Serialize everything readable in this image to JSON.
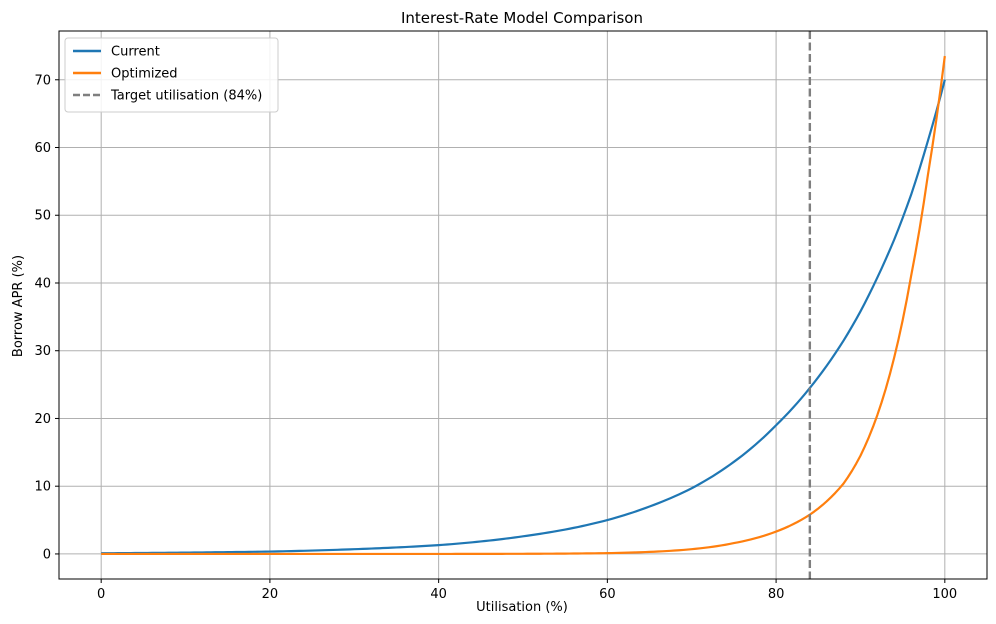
{
  "chart_data": {
    "type": "line",
    "title": "Interest-Rate Model Comparison",
    "xlabel": "Utilisation (%)",
    "ylabel": "Borrow APR (%)",
    "xlim": [
      -5,
      105
    ],
    "ylim": [
      -3.7,
      77.2
    ],
    "xticks": [
      0,
      20,
      40,
      60,
      80,
      100
    ],
    "yticks": [
      0,
      10,
      20,
      30,
      40,
      50,
      60,
      70
    ],
    "grid": true,
    "legend_position": "top-left",
    "x": [
      0,
      10,
      20,
      30,
      40,
      50,
      55,
      60,
      65,
      70,
      75,
      80,
      84,
      88,
      90,
      92,
      94,
      96,
      98,
      100
    ],
    "series": [
      {
        "name": "Current",
        "color": "#1f77b4",
        "values": [
          0.1,
          0.2,
          0.35,
          0.7,
          1.3,
          2.6,
          3.6,
          5.0,
          7.0,
          9.7,
          13.6,
          19.0,
          24.5,
          31.5,
          35.8,
          40.8,
          46.4,
          53.0,
          61.0,
          70.0
        ]
      },
      {
        "name": "Optimized",
        "color": "#ff7f0e",
        "values": [
          0.0,
          0.0,
          0.0,
          0.0,
          0.0,
          0.02,
          0.05,
          0.12,
          0.3,
          0.7,
          1.6,
          3.3,
          5.8,
          10.4,
          14.5,
          20.5,
          29.0,
          41.0,
          56.0,
          73.5
        ]
      }
    ],
    "vlines": [
      {
        "name": "Target utilisation (84%)",
        "x": 84,
        "color": "#7f7f7f",
        "style": "dashed"
      }
    ]
  }
}
